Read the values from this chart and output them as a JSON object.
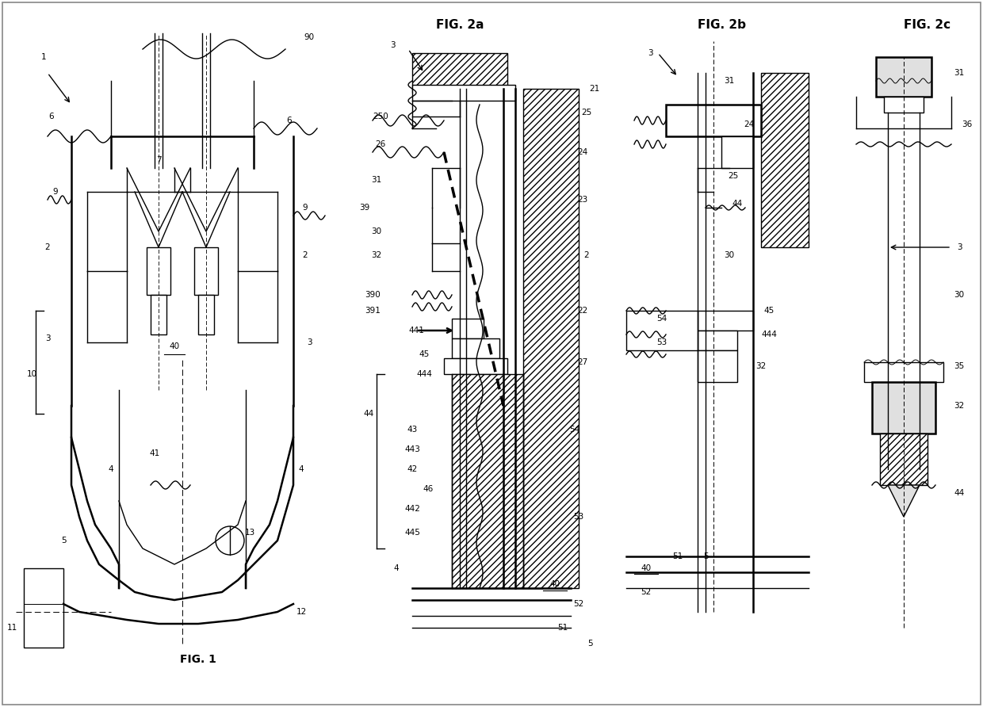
{
  "background_color": "#ffffff",
  "fig_width": 12.4,
  "fig_height": 8.92,
  "line_color": "#000000",
  "lw": 1.0,
  "lw2": 1.8,
  "fig1_label": "FIG. 1",
  "fig2a_label": "FIG. 2a",
  "fig2b_label": "FIG. 2b",
  "fig2c_label": "FIG. 2c"
}
